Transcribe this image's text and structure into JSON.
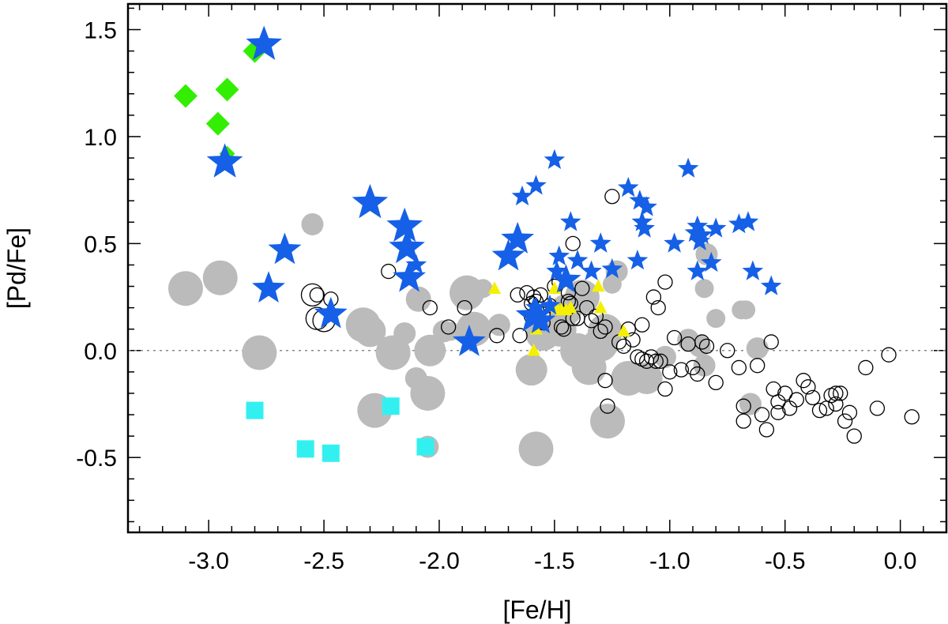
{
  "chart_data": {
    "type": "scatter",
    "xlabel": "[Fe/H]",
    "ylabel": "[Pd/Fe]",
    "xlim": [
      -3.35,
      0.2
    ],
    "ylim": [
      -0.85,
      1.62
    ],
    "xticks": [
      -3.0,
      -2.5,
      -2.0,
      -1.5,
      -1.0,
      -0.5,
      0.0
    ],
    "xtick_labels": [
      "-3.0",
      "-2.5",
      "-2.0",
      "-1.5",
      "-1.0",
      "-0.5",
      "0.0"
    ],
    "yticks": [
      -0.5,
      0.0,
      0.5,
      1.0,
      1.5
    ],
    "ytick_labels": [
      "-0.5",
      "0.0",
      "0.5",
      "1.0",
      "1.5"
    ],
    "minor_xstep": 0.1,
    "minor_ystep": 0.1,
    "reference_line_y": 0.0,
    "grid": false,
    "colors": {
      "grey": "#bbbbbb",
      "open": "#000000",
      "blue_star": "#1560e6",
      "yellow": "#f5f000",
      "green": "#33ee00",
      "cyan": "#33f0f0",
      "refline": "#888888"
    },
    "series": [
      {
        "marker": "filled-circle-grey",
        "x": [
          -2.55,
          -1.95,
          -1.81,
          -1.74,
          -1.35,
          -1.25,
          -1.23,
          -0.85,
          -0.84,
          -0.8,
          -0.69,
          -0.67,
          -3.1,
          -2.95,
          -2.78,
          -2.33,
          -2.3,
          -2.2,
          -2.28,
          -2.09,
          -2.04,
          -2.05,
          -2.1,
          -2.15,
          -1.88,
          -1.85,
          -1.6,
          -1.58,
          -1.4,
          -1.35,
          -1.3,
          -1.18,
          -1.1,
          -1.02,
          -0.92,
          -0.87,
          -0.85,
          -1.48,
          -1.45,
          -1.98,
          -2.05,
          -1.28,
          -0.65,
          -0.62,
          -1.55,
          -1.38,
          -1.27
        ],
        "y": [
          0.59,
          0.09,
          0.29,
          0.12,
          0.02,
          0.31,
          0.37,
          0.29,
          0.45,
          0.15,
          0.19,
          0.19,
          0.29,
          0.34,
          -0.01,
          0.12,
          0.09,
          -0.01,
          -0.28,
          0.24,
          0.0,
          -0.2,
          -0.13,
          0.08,
          0.27,
          0.1,
          -0.09,
          -0.46,
          0.0,
          -0.08,
          0.03,
          -0.13,
          -0.13,
          -0.03,
          0.05,
          0.02,
          -0.07,
          0.1,
          0.19,
          0.09,
          -0.45,
          0.09,
          -0.25,
          0.01,
          0.08,
          0.25,
          -0.33
        ],
        "size": [
          14,
          12,
          12,
          14,
          14,
          12,
          14,
          12,
          14,
          12,
          12,
          12,
          22,
          22,
          22,
          22,
          20,
          22,
          22,
          16,
          20,
          22,
          14,
          14,
          22,
          22,
          20,
          22,
          22,
          22,
          22,
          22,
          20,
          14,
          14,
          14,
          14,
          22,
          20,
          14,
          14,
          22,
          14,
          14,
          22,
          22,
          22
        ]
      },
      {
        "marker": "open-circle",
        "x": [
          -2.53,
          -2.5,
          -2.47,
          -2.22,
          -2.04,
          -1.96,
          -1.89,
          -1.75,
          -1.65,
          -1.62,
          -1.6,
          -1.59,
          -1.58,
          -1.55,
          -1.52,
          -1.5,
          -1.48,
          -1.46,
          -1.44,
          -1.42,
          -1.4,
          -1.38,
          -1.36,
          -1.34,
          -1.32,
          -1.3,
          -1.28,
          -1.27,
          -1.25,
          -1.22,
          -1.2,
          -1.18,
          -1.16,
          -1.14,
          -1.12,
          -1.1,
          -1.08,
          -1.06,
          -1.04,
          -1.02,
          -1.0,
          -0.98,
          -0.95,
          -0.92,
          -0.9,
          -0.88,
          -0.86,
          -0.84,
          -0.8,
          -0.75,
          -0.7,
          -0.68,
          -0.62,
          -0.58,
          -0.55,
          -0.53,
          -0.5,
          -0.48,
          -0.45,
          -0.42,
          -0.4,
          -0.38,
          -0.35,
          -0.32,
          -0.3,
          -0.28,
          -0.26,
          -0.24,
          -0.22,
          -0.2,
          -0.15,
          -0.1,
          -0.05,
          0.05,
          -0.56,
          -0.6,
          -0.68,
          -0.53,
          -0.28,
          -1.12,
          -1.28,
          -1.07,
          -1.02,
          -1.05,
          -1.42,
          -1.44,
          -1.66,
          -1.56,
          -1.55,
          -1.6,
          -1.47,
          -1.43
        ],
        "y": [
          0.26,
          0.14,
          0.24,
          0.37,
          0.2,
          0.11,
          0.2,
          0.07,
          0.07,
          0.27,
          0.22,
          0.25,
          0.23,
          0.17,
          0.21,
          0.3,
          0.32,
          0.1,
          0.27,
          0.5,
          0.15,
          0.29,
          0.2,
          0.14,
          0.16,
          0.09,
          0.11,
          -0.26,
          0.72,
          0.04,
          0.02,
          0.1,
          0.05,
          -0.03,
          -0.04,
          -0.05,
          -0.03,
          -0.05,
          -0.05,
          -0.18,
          -0.1,
          0.06,
          -0.09,
          0.03,
          -0.08,
          -0.11,
          0.04,
          0.02,
          -0.15,
          0.0,
          -0.08,
          -0.33,
          -0.07,
          -0.37,
          -0.18,
          -0.24,
          -0.2,
          -0.27,
          -0.23,
          -0.14,
          -0.17,
          -0.22,
          -0.28,
          -0.27,
          -0.21,
          -0.25,
          -0.2,
          -0.33,
          -0.29,
          -0.4,
          -0.08,
          -0.27,
          -0.02,
          -0.31,
          0.04,
          -0.3,
          -0.26,
          -0.29,
          -0.2,
          0.12,
          -0.14,
          0.25,
          0.32,
          0.2,
          0.15,
          0.23,
          0.26,
          0.26,
          0.13,
          0.16,
          0.11,
          0.22
        ],
        "size": [
          9,
          14,
          9,
          9,
          9,
          9,
          9,
          9,
          9,
          9,
          9,
          9,
          9,
          9,
          9,
          9,
          9,
          9,
          9,
          9,
          9,
          9,
          9,
          9,
          9,
          9,
          9,
          9,
          9,
          9,
          9,
          9,
          9,
          9,
          9,
          9,
          9,
          9,
          9,
          9,
          9,
          9,
          9,
          9,
          9,
          9,
          9,
          9,
          9,
          9,
          9,
          9,
          9,
          9,
          9,
          9,
          9,
          9,
          9,
          9,
          9,
          9,
          9,
          9,
          9,
          9,
          9,
          9,
          9,
          9,
          9,
          9,
          9,
          9,
          9,
          9,
          9,
          9,
          9,
          9,
          9,
          9,
          9,
          9,
          9,
          9,
          9,
          9,
          9,
          9,
          9,
          9
        ],
        "extra_large": [
          {
            "x": -2.55,
            "y": 0.26
          },
          {
            "x": -2.53,
            "y": 0.15
          }
        ]
      },
      {
        "marker": "star-blue",
        "x": [
          -2.76,
          -2.93,
          -2.67,
          -2.3,
          -2.74,
          -2.47,
          -2.15,
          -2.14,
          -2.13,
          -1.87,
          -1.7,
          -1.66,
          -1.59,
          -1.56,
          -1.45,
          -1.5,
          -1.64,
          -1.58,
          -1.49,
          -1.43,
          -1.4,
          -1.3,
          -1.25,
          -1.34,
          -1.18,
          -1.12,
          -1.1,
          -1.13,
          -1.11,
          -1.14,
          -0.98,
          -0.88,
          -0.89,
          -0.87,
          -0.86,
          -0.8,
          -0.82,
          -0.7,
          -0.66,
          -0.64,
          -0.92,
          -0.56,
          -1.48,
          -1.3,
          -1.52,
          -1.58,
          -2.1,
          -0.88
        ],
        "y": [
          1.43,
          0.88,
          0.47,
          0.69,
          0.29,
          0.17,
          0.58,
          0.48,
          0.34,
          0.04,
          0.44,
          0.52,
          0.16,
          0.14,
          0.33,
          0.89,
          0.72,
          0.77,
          0.37,
          0.6,
          0.42,
          0.5,
          0.38,
          0.37,
          0.76,
          0.6,
          0.67,
          0.7,
          0.57,
          0.42,
          0.5,
          0.58,
          0.55,
          0.51,
          0.54,
          0.57,
          0.41,
          0.59,
          0.6,
          0.37,
          0.85,
          0.3,
          0.44,
          0.5,
          0.21,
          0.2,
          0.4,
          0.37
        ],
        "size": [
          24,
          24,
          22,
          24,
          22,
          22,
          24,
          24,
          22,
          22,
          22,
          22,
          24,
          20,
          20,
          14,
          14,
          14,
          14,
          14,
          14,
          14,
          14,
          14,
          14,
          14,
          14,
          14,
          14,
          14,
          14,
          14,
          14,
          14,
          14,
          14,
          14,
          14,
          14,
          14,
          14,
          14,
          14,
          14,
          14,
          14,
          14,
          14
        ]
      },
      {
        "marker": "triangle-yellow",
        "x": [
          -1.76,
          -1.58,
          -1.5,
          -1.49,
          -1.47,
          -1.45,
          -1.43,
          -1.31,
          -1.3,
          -1.2,
          -1.59
        ],
        "y": [
          0.29,
          0.1,
          0.29,
          0.2,
          0.19,
          0.19,
          0.2,
          0.3,
          0.2,
          0.09,
          0.0
        ],
        "size": [
          9,
          9,
          9,
          9,
          9,
          9,
          9,
          9,
          9,
          9,
          9
        ]
      },
      {
        "marker": "diamond-green",
        "x": [
          -3.1,
          -2.96,
          -2.92,
          -2.8,
          -2.92
        ],
        "y": [
          1.19,
          1.06,
          1.22,
          1.4,
          0.92
        ],
        "size": [
          15,
          15,
          15,
          15,
          10
        ]
      },
      {
        "marker": "square-cyan",
        "x": [
          -2.8,
          -2.58,
          -2.47,
          -2.21,
          -2.06
        ],
        "y": [
          -0.28,
          -0.46,
          -0.48,
          -0.26,
          -0.45
        ],
        "size": [
          11,
          11,
          11,
          11,
          11
        ]
      }
    ]
  }
}
